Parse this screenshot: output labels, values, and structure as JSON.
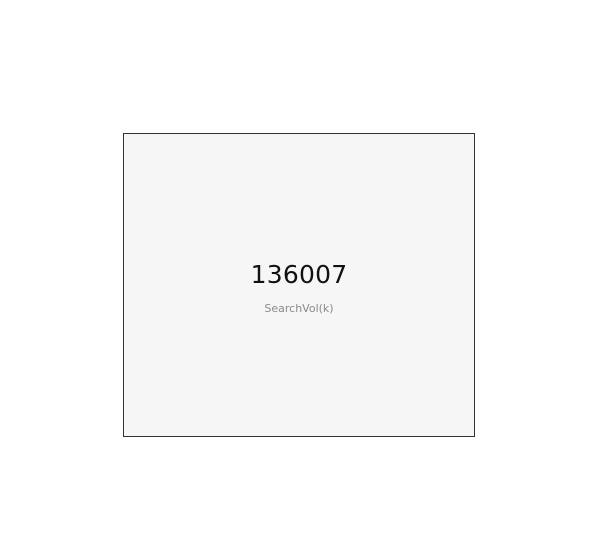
{
  "chart_data": {
    "type": "kpi",
    "value": 136007,
    "value_text": "136007",
    "label": "SearchVol(k)"
  },
  "colors": {
    "card_background": "#f6f6f7",
    "card_border": "#333333",
    "value_text": "#111111",
    "label_text": "#8a8a8a"
  }
}
